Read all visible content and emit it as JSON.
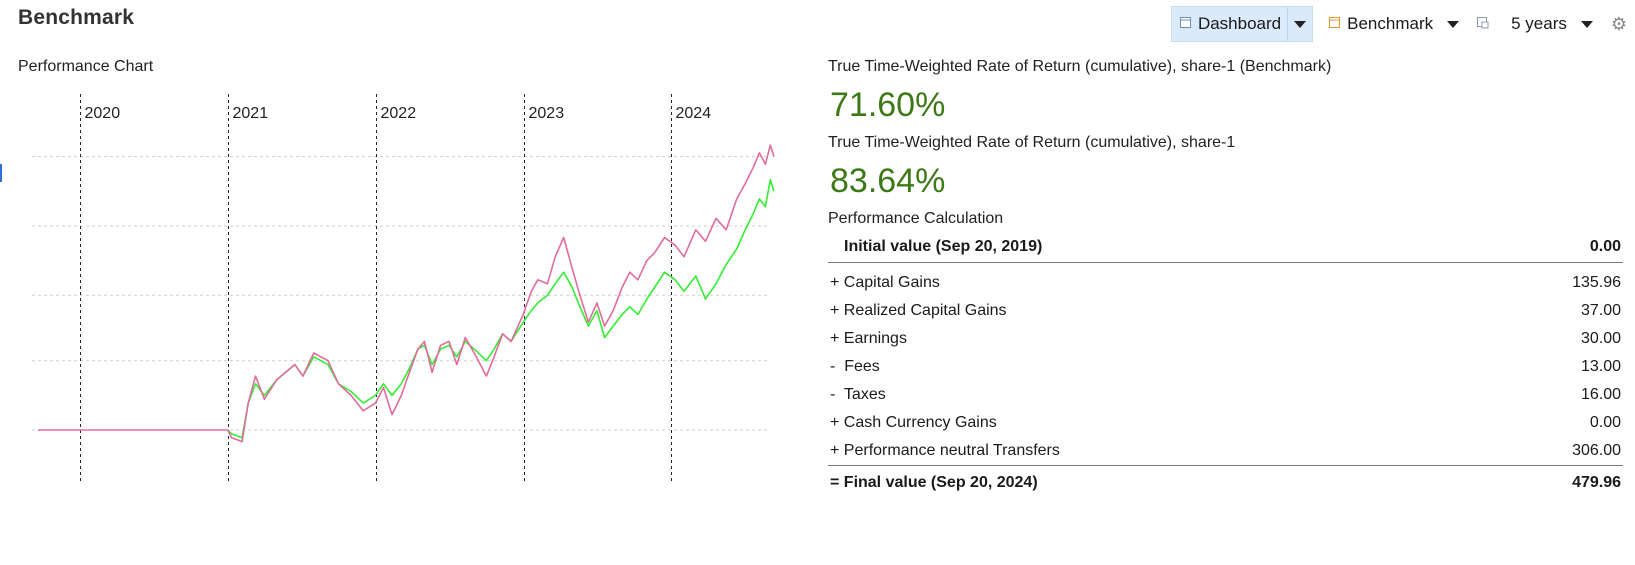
{
  "page_title": "Benchmark",
  "toolbar": {
    "dashboard_label": "Dashboard",
    "benchmark_label": "Benchmark",
    "period_label": "5 years"
  },
  "chart_data": {
    "type": "line",
    "title": "Performance Chart",
    "x_years": [
      "2020",
      "2021",
      "2022",
      "2023",
      "2024"
    ],
    "x_range": [
      "2019-09-20",
      "2024-09-20"
    ],
    "gridlines": "horizontal dashed, vertical dotted at year starts",
    "series": [
      {
        "color": "#e06c9f",
        "points": [
          [
            "2019-09-20",
            0
          ],
          [
            "2020-12-31",
            0
          ],
          [
            "2021-01-10",
            -2
          ],
          [
            "2021-02-05",
            -3
          ],
          [
            "2021-02-20",
            7
          ],
          [
            "2021-03-10",
            14
          ],
          [
            "2021-04-01",
            8
          ],
          [
            "2021-05-01",
            13
          ],
          [
            "2021-06-15",
            17
          ],
          [
            "2021-07-05",
            14
          ],
          [
            "2021-08-01",
            20
          ],
          [
            "2021-09-05",
            18
          ],
          [
            "2021-10-01",
            12
          ],
          [
            "2021-11-01",
            9
          ],
          [
            "2021-12-01",
            5
          ],
          [
            "2021-12-31",
            7
          ],
          [
            "2022-01-20",
            11
          ],
          [
            "2022-02-10",
            4
          ],
          [
            "2022-03-05",
            9
          ],
          [
            "2022-03-25",
            15
          ],
          [
            "2022-04-15",
            21
          ],
          [
            "2022-05-01",
            23
          ],
          [
            "2022-05-20",
            15
          ],
          [
            "2022-06-10",
            22
          ],
          [
            "2022-07-01",
            23
          ],
          [
            "2022-07-20",
            17
          ],
          [
            "2022-08-10",
            24
          ],
          [
            "2022-09-01",
            20
          ],
          [
            "2022-10-01",
            14
          ],
          [
            "2022-10-20",
            19
          ],
          [
            "2022-11-10",
            25
          ],
          [
            "2022-12-01",
            23
          ],
          [
            "2022-12-31",
            30
          ],
          [
            "2023-01-20",
            36
          ],
          [
            "2023-02-05",
            39
          ],
          [
            "2023-03-01",
            38
          ],
          [
            "2023-03-20",
            45
          ],
          [
            "2023-04-10",
            50
          ],
          [
            "2023-05-01",
            42
          ],
          [
            "2023-05-20",
            35
          ],
          [
            "2023-06-10",
            28
          ],
          [
            "2023-07-01",
            33
          ],
          [
            "2023-07-20",
            27
          ],
          [
            "2023-08-10",
            31
          ],
          [
            "2023-09-01",
            37
          ],
          [
            "2023-09-20",
            41
          ],
          [
            "2023-10-10",
            39
          ],
          [
            "2023-11-01",
            44
          ],
          [
            "2023-11-20",
            46
          ],
          [
            "2023-12-15",
            50
          ],
          [
            "2024-01-10",
            48
          ],
          [
            "2024-02-01",
            45
          ],
          [
            "2024-03-01",
            52
          ],
          [
            "2024-03-25",
            49
          ],
          [
            "2024-04-20",
            55
          ],
          [
            "2024-05-15",
            52
          ],
          [
            "2024-06-10",
            60
          ],
          [
            "2024-07-01",
            64
          ],
          [
            "2024-07-20",
            68
          ],
          [
            "2024-08-05",
            72
          ],
          [
            "2024-08-20",
            69
          ],
          [
            "2024-09-01",
            74
          ],
          [
            "2024-09-10",
            71
          ]
        ]
      },
      {
        "color": "#33ee33",
        "points": [
          [
            "2020-12-31",
            0
          ],
          [
            "2021-01-10",
            -1
          ],
          [
            "2021-02-05",
            -2
          ],
          [
            "2021-02-20",
            7
          ],
          [
            "2021-03-10",
            12
          ],
          [
            "2021-04-01",
            9
          ],
          [
            "2021-05-01",
            13
          ],
          [
            "2021-06-15",
            17
          ],
          [
            "2021-07-05",
            14
          ],
          [
            "2021-08-01",
            19
          ],
          [
            "2021-09-05",
            17
          ],
          [
            "2021-10-01",
            12
          ],
          [
            "2021-11-01",
            10
          ],
          [
            "2021-12-01",
            7
          ],
          [
            "2021-12-31",
            9
          ],
          [
            "2022-01-20",
            12
          ],
          [
            "2022-02-10",
            9
          ],
          [
            "2022-03-05",
            12
          ],
          [
            "2022-03-25",
            16
          ],
          [
            "2022-04-15",
            21
          ],
          [
            "2022-05-01",
            22
          ],
          [
            "2022-05-20",
            17
          ],
          [
            "2022-06-10",
            21
          ],
          [
            "2022-07-01",
            22
          ],
          [
            "2022-07-20",
            19
          ],
          [
            "2022-08-10",
            23
          ],
          [
            "2022-09-01",
            21
          ],
          [
            "2022-10-01",
            18
          ],
          [
            "2022-10-20",
            21
          ],
          [
            "2022-11-10",
            25
          ],
          [
            "2022-12-01",
            23
          ],
          [
            "2022-12-31",
            28
          ],
          [
            "2023-01-20",
            31
          ],
          [
            "2023-02-05",
            33
          ],
          [
            "2023-03-01",
            35
          ],
          [
            "2023-03-20",
            38
          ],
          [
            "2023-04-10",
            41
          ],
          [
            "2023-05-01",
            37
          ],
          [
            "2023-05-20",
            32
          ],
          [
            "2023-06-10",
            27
          ],
          [
            "2023-07-01",
            31
          ],
          [
            "2023-07-20",
            24
          ],
          [
            "2023-08-10",
            27
          ],
          [
            "2023-09-01",
            30
          ],
          [
            "2023-09-20",
            32
          ],
          [
            "2023-10-10",
            30
          ],
          [
            "2023-11-01",
            34
          ],
          [
            "2023-11-20",
            37
          ],
          [
            "2023-12-15",
            41
          ],
          [
            "2024-01-10",
            39
          ],
          [
            "2024-02-01",
            36
          ],
          [
            "2024-03-01",
            40
          ],
          [
            "2024-03-25",
            34
          ],
          [
            "2024-04-20",
            38
          ],
          [
            "2024-05-15",
            43
          ],
          [
            "2024-06-10",
            47
          ],
          [
            "2024-07-01",
            52
          ],
          [
            "2024-07-20",
            56
          ],
          [
            "2024-08-05",
            60
          ],
          [
            "2024-08-20",
            58
          ],
          [
            "2024-09-01",
            65
          ],
          [
            "2024-09-10",
            62
          ]
        ]
      }
    ]
  },
  "returns": {
    "benchmark_label": "True Time-Weighted Rate of Return (cumulative), share-1 (Benchmark)",
    "benchmark_value": "71.60%",
    "share_label": "True Time-Weighted Rate of Return (cumulative), share-1",
    "share_value": "83.64%"
  },
  "calculation": {
    "title": "Performance Calculation",
    "initial": {
      "label": "Initial value (Sep 20, 2019)",
      "value": "0.00"
    },
    "rows": [
      {
        "label": "+ Capital Gains",
        "value": "135.96"
      },
      {
        "label": "+ Realized Capital Gains",
        "value": "37.00"
      },
      {
        "label": "+ Earnings",
        "value": "30.00"
      },
      {
        "label": "-  Fees",
        "value": "13.00"
      },
      {
        "label": "-  Taxes",
        "value": "16.00"
      },
      {
        "label": "+ Cash Currency Gains",
        "value": "0.00"
      },
      {
        "label": "+ Performance neutral Transfers",
        "value": "306.00"
      }
    ],
    "final": {
      "label": "= Final value (Sep 20, 2024)",
      "value": "479.96"
    }
  }
}
